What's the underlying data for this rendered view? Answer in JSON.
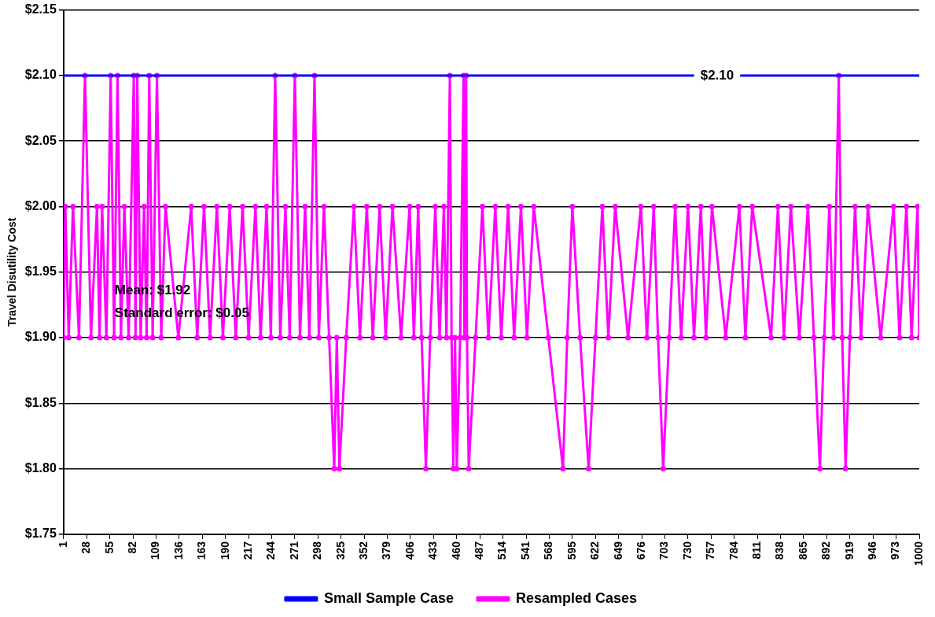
{
  "chart_data": {
    "type": "line",
    "ylabel": "Travel Disutility Cost",
    "xlim": [
      1,
      1000
    ],
    "xticks": [
      1,
      28,
      55,
      82,
      109,
      136,
      163,
      190,
      217,
      244,
      271,
      298,
      325,
      352,
      379,
      406,
      433,
      460,
      487,
      514,
      541,
      568,
      595,
      622,
      649,
      676,
      703,
      730,
      757,
      784,
      811,
      838,
      865,
      892,
      919,
      946,
      973,
      1000
    ],
    "ylim": [
      1.75,
      2.15
    ],
    "yticks": [
      {
        "value": 1.75,
        "label": "$1.75"
      },
      {
        "value": 1.8,
        "label": "$1.80"
      },
      {
        "value": 1.85,
        "label": "$1.85"
      },
      {
        "value": 1.9,
        "label": "$1.90"
      },
      {
        "value": 1.95,
        "label": "$1.95"
      },
      {
        "value": 2.0,
        "label": "$2.00"
      },
      {
        "value": 2.05,
        "label": "$2.05"
      },
      {
        "value": 2.1,
        "label": "$2.10"
      },
      {
        "value": 2.15,
        "label": "$2.15"
      }
    ],
    "grid": "y",
    "legend": "bottom",
    "line_style": "solid",
    "series": [
      {
        "name": "Small Sample Case",
        "color": "#0000ff",
        "marker": "none",
        "x": [
          1,
          1000
        ],
        "values": [
          2.1,
          2.1
        ]
      },
      {
        "name": "Resampled Cases",
        "color": "#ff00ff",
        "marker": "circle",
        "x": [
          1,
          3,
          7,
          12,
          19,
          26,
          33,
          40,
          43,
          46,
          51,
          56,
          60,
          64,
          68,
          72,
          77,
          83,
          85,
          87,
          91,
          95,
          98,
          101,
          105,
          110,
          115,
          120,
          135,
          150,
          157,
          165,
          172,
          180,
          187,
          195,
          202,
          210,
          217,
          225,
          231,
          238,
          243,
          248,
          254,
          260,
          265,
          271,
          277,
          283,
          288,
          294,
          299,
          305,
          311,
          317,
          320,
          323,
          331,
          340,
          347,
          355,
          362,
          370,
          377,
          385,
          395,
          405,
          410,
          415,
          419,
          424,
          429,
          435,
          440,
          445,
          448,
          452,
          454,
          456,
          458,
          460,
          464,
          468,
          469,
          471,
          472,
          474,
          482,
          490,
          497,
          505,
          512,
          520,
          527,
          535,
          542,
          550,
          567,
          584,
          589,
          595,
          604,
          614,
          622,
          630,
          637,
          645,
          660,
          675,
          682,
          690,
          695,
          701,
          708,
          715,
          722,
          730,
          737,
          745,
          751,
          758,
          774,
          790,
          797,
          805,
          827,
          835,
          842,
          850,
          860,
          870,
          877,
          884,
          889,
          895,
          900,
          906,
          910,
          914,
          919,
          925,
          932,
          940,
          955,
          970,
          977,
          985,
          991,
          998,
          1000
        ],
        "values": [
          1.9,
          2.0,
          1.9,
          2.0,
          1.9,
          2.1,
          1.9,
          2.0,
          1.9,
          2.0,
          1.9,
          2.1,
          1.9,
          2.1,
          1.9,
          2.0,
          1.9,
          2.1,
          1.9,
          2.1,
          1.9,
          2.0,
          1.9,
          2.1,
          1.9,
          2.1,
          1.9,
          2.0,
          1.9,
          2.0,
          1.9,
          2.0,
          1.9,
          2.0,
          1.9,
          2.0,
          1.9,
          2.0,
          1.9,
          2.0,
          1.9,
          2.0,
          1.9,
          2.1,
          1.9,
          2.0,
          1.9,
          2.1,
          1.9,
          2.0,
          1.9,
          2.1,
          1.9,
          2.0,
          1.9,
          1.8,
          1.9,
          1.8,
          1.9,
          2.0,
          1.9,
          2.0,
          1.9,
          2.0,
          1.9,
          2.0,
          1.9,
          2.0,
          1.9,
          2.0,
          1.9,
          1.8,
          1.9,
          2.0,
          1.9,
          2.0,
          1.9,
          2.1,
          1.9,
          1.8,
          1.9,
          1.8,
          1.9,
          2.1,
          1.9,
          2.1,
          1.9,
          1.8,
          1.9,
          2.0,
          1.9,
          2.0,
          1.9,
          2.0,
          1.9,
          2.0,
          1.9,
          2.0,
          1.9,
          1.8,
          1.9,
          2.0,
          1.9,
          1.8,
          1.9,
          2.0,
          1.9,
          2.0,
          1.9,
          2.0,
          1.9,
          2.0,
          1.9,
          1.8,
          1.9,
          2.0,
          1.9,
          2.0,
          1.9,
          2.0,
          1.9,
          2.0,
          1.9,
          2.0,
          1.9,
          2.0,
          1.9,
          2.0,
          1.9,
          2.0,
          1.9,
          2.0,
          1.9,
          1.8,
          1.9,
          2.0,
          1.9,
          2.1,
          1.9,
          1.8,
          1.9,
          2.0,
          1.9,
          2.0,
          1.9,
          2.0,
          1.9,
          2.0,
          1.9,
          2.0,
          1.9
        ]
      }
    ],
    "annotations": [
      {
        "text": "$2.10",
        "x": 764,
        "y": 2.1
      },
      "Mean: $1.92",
      "Standard error: $0.05"
    ]
  }
}
